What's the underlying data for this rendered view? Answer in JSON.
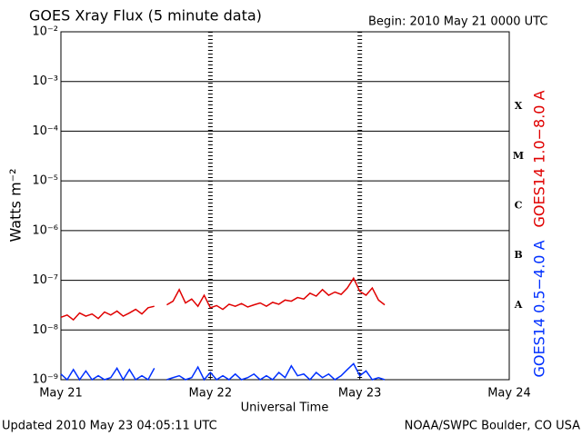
{
  "chart_data": {
    "type": "line",
    "title": "GOES Xray Flux (5 minute data)",
    "subtitle": "Begin:  2010 May 21 0000 UTC",
    "xlabel": "Universal Time",
    "ylabel": "Watts m⁻²",
    "footer_left": "Updated 2010 May 23 04:05:11 UTC",
    "footer_right": "NOAA/SWPC Boulder, CO USA",
    "log_y": true,
    "grid": true,
    "xlim": [
      0,
      72
    ],
    "xticks": [
      {
        "value": 0,
        "label": "May 21"
      },
      {
        "value": 24,
        "label": "May 22"
      },
      {
        "value": 48,
        "label": "May 23"
      },
      {
        "value": 72,
        "label": "May 24"
      }
    ],
    "ylim": [
      1e-09,
      0.01
    ],
    "yticks": [
      {
        "value": 1e-09,
        "label": "10⁻⁹"
      },
      {
        "value": 1e-08,
        "label": "10⁻⁸"
      },
      {
        "value": 1e-07,
        "label": "10⁻⁷"
      },
      {
        "value": 1e-06,
        "label": "10⁻⁶"
      },
      {
        "value": 1e-05,
        "label": "10⁻⁵"
      },
      {
        "value": 0.0001,
        "label": "10⁻⁴"
      },
      {
        "value": 0.001,
        "label": "10⁻³"
      },
      {
        "value": 0.01,
        "label": "10⁻²"
      }
    ],
    "flare_classes": [
      {
        "label": "A",
        "value": 1e-08
      },
      {
        "label": "B",
        "value": 1e-07
      },
      {
        "label": "C",
        "value": 1e-06
      },
      {
        "label": "M",
        "value": 1e-05
      },
      {
        "label": "X",
        "value": 0.0001
      }
    ],
    "x": [
      0,
      1,
      2,
      3,
      4,
      5,
      6,
      7,
      8,
      9,
      10,
      11,
      12,
      13,
      14,
      15,
      16,
      17,
      18,
      19,
      20,
      21,
      22,
      23,
      24,
      25,
      26,
      27,
      28,
      29,
      30,
      31,
      32,
      33,
      34,
      35,
      36,
      37,
      38,
      39,
      40,
      41,
      42,
      43,
      44,
      45,
      46,
      47,
      48,
      49,
      50,
      51,
      52
    ],
    "series": [
      {
        "name": "GOES14 1.0−8.0 A",
        "color": "#e00000",
        "values": [
          1.8e-08,
          2e-08,
          1.6e-08,
          2.2e-08,
          1.9e-08,
          2.1e-08,
          1.7e-08,
          2.3e-08,
          2e-08,
          2.4e-08,
          1.9e-08,
          2.2e-08,
          2.6e-08,
          2.1e-08,
          2.8e-08,
          3e-08,
          null,
          3.2e-08,
          3.8e-08,
          6.5e-08,
          3.5e-08,
          4.2e-08,
          3e-08,
          5e-08,
          2.8e-08,
          3.1e-08,
          2.6e-08,
          3.3e-08,
          3e-08,
          3.4e-08,
          2.9e-08,
          3.2e-08,
          3.5e-08,
          3e-08,
          3.6e-08,
          3.3e-08,
          4e-08,
          3.8e-08,
          4.5e-08,
          4.2e-08,
          5.5e-08,
          4.8e-08,
          6.5e-08,
          5e-08,
          5.8e-08,
          5.2e-08,
          7e-08,
          1.1e-07,
          6e-08,
          5e-08,
          7e-08,
          4e-08,
          3.2e-08
        ]
      },
      {
        "name": "GOES14 0.5−4.0 A",
        "color": "#0030ff",
        "values": [
          1.3e-09,
          1e-09,
          1.6e-09,
          1e-09,
          1.5e-09,
          1e-09,
          1.2e-09,
          1e-09,
          1.1e-09,
          1.7e-09,
          1e-09,
          1.6e-09,
          1e-09,
          1.2e-09,
          1e-09,
          1.7e-09,
          null,
          1e-09,
          1.1e-09,
          1.2e-09,
          1e-09,
          1.1e-09,
          1.8e-09,
          1e-09,
          1.4e-09,
          1e-09,
          1.2e-09,
          1e-09,
          1.3e-09,
          1e-09,
          1.1e-09,
          1.3e-09,
          1e-09,
          1.2e-09,
          1e-09,
          1.4e-09,
          1.1e-09,
          1.9e-09,
          1.2e-09,
          1.3e-09,
          1e-09,
          1.4e-09,
          1.1e-09,
          1.3e-09,
          1e-09,
          1.2e-09,
          1.6e-09,
          2.1e-09,
          1.2e-09,
          1.5e-09,
          1e-09,
          1.1e-09,
          1e-09
        ]
      }
    ]
  }
}
